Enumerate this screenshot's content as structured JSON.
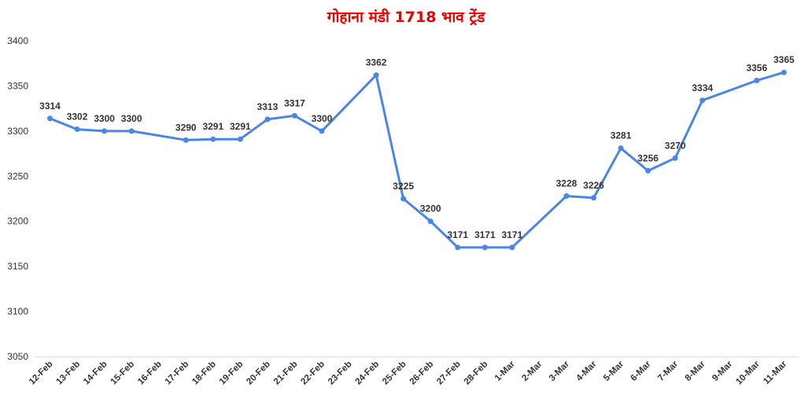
{
  "chart_data": {
    "type": "line",
    "title": "गोहाना मंडी 1718 भाव ट्रेंड",
    "xlabel": "",
    "ylabel": "",
    "ylim": [
      3050,
      3400
    ],
    "y_ticks": [
      3050,
      3100,
      3150,
      3200,
      3250,
      3300,
      3350,
      3400
    ],
    "grid": false,
    "legend": "none",
    "line_color": "#4a86e8",
    "title_color": "#ee0000",
    "categories": [
      "12-Feb",
      "13-Feb",
      "14-Feb",
      "15-Feb",
      "16-Feb",
      "17-Feb",
      "18-Feb",
      "19-Feb",
      "20-Feb",
      "21-Feb",
      "22-Feb",
      "23-Feb",
      "24-Feb",
      "25-Feb",
      "26-Feb",
      "27-Feb",
      "28-Feb",
      "1-Mar",
      "2-Mar",
      "3-Mar",
      "4-Mar",
      "5-Mar",
      "6-Mar",
      "7-Mar",
      "8-Mar",
      "9-Mar",
      "10-Mar",
      "11-Mar"
    ],
    "points": [
      {
        "x": "12-Feb",
        "y": 3314
      },
      {
        "x": "13-Feb",
        "y": 3302
      },
      {
        "x": "14-Feb",
        "y": 3300
      },
      {
        "x": "15-Feb",
        "y": 3300
      },
      {
        "x": "17-Feb",
        "y": 3290
      },
      {
        "x": "18-Feb",
        "y": 3291
      },
      {
        "x": "19-Feb",
        "y": 3291
      },
      {
        "x": "20-Feb",
        "y": 3313
      },
      {
        "x": "21-Feb",
        "y": 3317
      },
      {
        "x": "22-Feb",
        "y": 3300
      },
      {
        "x": "24-Feb",
        "y": 3362
      },
      {
        "x": "25-Feb",
        "y": 3225
      },
      {
        "x": "26-Feb",
        "y": 3200
      },
      {
        "x": "27-Feb",
        "y": 3171
      },
      {
        "x": "28-Feb",
        "y": 3171
      },
      {
        "x": "1-Mar",
        "y": 3171
      },
      {
        "x": "3-Mar",
        "y": 3228
      },
      {
        "x": "4-Mar",
        "y": 3226
      },
      {
        "x": "5-Mar",
        "y": 3281
      },
      {
        "x": "6-Mar",
        "y": 3256
      },
      {
        "x": "7-Mar",
        "y": 3270
      },
      {
        "x": "8-Mar",
        "y": 3334
      },
      {
        "x": "10-Mar",
        "y": 3356
      },
      {
        "x": "11-Mar",
        "y": 3365
      }
    ]
  }
}
